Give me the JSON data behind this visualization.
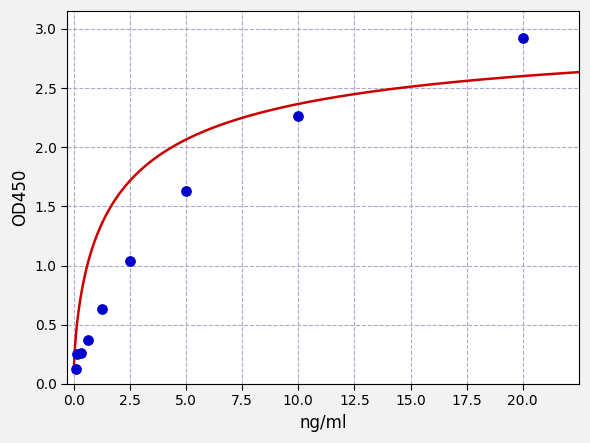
{
  "x_data": [
    0.078,
    0.156,
    0.313,
    0.625,
    1.25,
    2.5,
    5.0,
    10.0,
    20.0
  ],
  "y_data": [
    0.13,
    0.25,
    0.26,
    0.37,
    0.635,
    1.04,
    1.63,
    2.26,
    2.92
  ],
  "xlabel": "ng/ml",
  "ylabel": "OD450",
  "xlim": [
    -0.3,
    22.5
  ],
  "ylim": [
    0.0,
    3.15
  ],
  "xticks": [
    0.0,
    2.5,
    5.0,
    7.5,
    10.0,
    12.5,
    15.0,
    17.5,
    20.0
  ],
  "yticks": [
    0.0,
    0.5,
    1.0,
    1.5,
    2.0,
    2.5,
    3.0
  ],
  "dot_color": "#0000CC",
  "line_color": "#CC0000",
  "outer_bg": "#F2F2F2",
  "plot_bg": "#FFFFFF",
  "grid_color": "#AAAACC",
  "dot_size": 45,
  "line_width": 1.8,
  "xlabel_fontsize": 12,
  "ylabel_fontsize": 12,
  "tick_fontsize": 10
}
